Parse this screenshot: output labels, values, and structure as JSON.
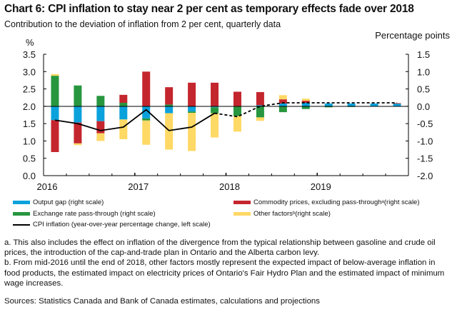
{
  "header": {
    "title": "Chart 6: CPI inflation to stay near 2 per cent as temporary effects fade over 2018",
    "subtitle": "Contribution to the deviation of inflation from 2 per cent, quarterly data"
  },
  "colors": {
    "output_gap": "#0BA2DC",
    "commodity": "#C4262E",
    "exchange_rate": "#27963F",
    "other": "#FFD965",
    "cpi": "#000000"
  },
  "chart_data": {
    "type": "bar",
    "stacked": true,
    "title": "Chart 6: CPI inflation to stay near 2 per cent as temporary effects fade over 2018",
    "subtitle": "Contribution to the deviation of inflation from 2 per cent, quarterly data",
    "left_axis": {
      "label": "%",
      "range": [
        0.0,
        3.5
      ],
      "ticks": [
        "3.5",
        "3.0",
        "2.5",
        "2.0",
        "1.5",
        "1.0",
        "0.5",
        "0.0"
      ]
    },
    "right_axis": {
      "label": "Percentage points",
      "range": [
        -2.0,
        1.5
      ],
      "ticks": [
        "1.5",
        "1.0",
        "0.5",
        "0.0",
        "-0.5",
        "-1.0",
        "-1.5",
        "-2.0"
      ]
    },
    "x_tick_labels": [
      "2016",
      "2017",
      "2018",
      "2019"
    ],
    "categories": [
      "2016Q1",
      "2016Q2",
      "2016Q3",
      "2016Q4",
      "2017Q1",
      "2017Q2",
      "2017Q3",
      "2017Q4",
      "2018Q1",
      "2018Q2",
      "2018Q3",
      "2018Q4",
      "2019Q1",
      "2019Q2",
      "2019Q3",
      "2019Q4"
    ],
    "series": [
      {
        "key": "output_gap",
        "name": "Output gap (right scale)",
        "axis": "right",
        "values": [
          -0.4,
          -0.47,
          -0.43,
          -0.38,
          -0.35,
          -0.2,
          -0.15,
          -0.03,
          0.0,
          0.03,
          0.08,
          0.1,
          0.08,
          0.08,
          0.08,
          0.08
        ]
      },
      {
        "key": "exchange_rate",
        "name": "Exchange rate pass-through (right scale)",
        "axis": "right",
        "values": [
          0.88,
          0.6,
          0.3,
          0.1,
          -0.06,
          0.05,
          -0.04,
          -0.17,
          -0.28,
          -0.32,
          -0.17,
          -0.08,
          -0.03,
          -0.02,
          0.0,
          0.0
        ]
      },
      {
        "key": "commodity",
        "name": "Commodity prices, excluding pass-through",
        "name_suffix": "a",
        "name_tail": " (right scale)",
        "axis": "right",
        "values": [
          -0.92,
          -0.6,
          -0.35,
          0.23,
          1.0,
          0.5,
          0.68,
          0.68,
          0.42,
          0.38,
          0.12,
          0.06,
          0.0,
          0.0,
          0.0,
          0.01
        ]
      },
      {
        "key": "other",
        "name": "Other factors",
        "name_suffix": "b",
        "name_tail": " (right scale)",
        "axis": "right",
        "values": [
          0.05,
          -0.05,
          -0.22,
          -0.57,
          -0.7,
          -1.05,
          -1.1,
          -0.7,
          -0.45,
          -0.1,
          0.12,
          0.06,
          0.0,
          0.0,
          0.0,
          0.0
        ]
      },
      {
        "key": "cpi",
        "name": "CPI inflation (year-over-year percentage change, left scale)",
        "axis": "left",
        "type": "line",
        "values": [
          1.6,
          1.5,
          1.3,
          1.4,
          1.9,
          1.3,
          1.4,
          1.8,
          1.7,
          2.0,
          2.1,
          2.1,
          2.1,
          2.1,
          2.1,
          2.1
        ],
        "projection_from_index": 7
      }
    ],
    "reference_line": {
      "left_value": 2.0,
      "right_value": 0.0
    }
  },
  "legend": {
    "output_gap": "Output gap (right scale)",
    "commodity_main": "Commodity prices, excluding pass-through",
    "commodity_sup": "a",
    "commodity_tail": " (right scale)",
    "exchange_rate": "Exchange rate pass-through (right scale)",
    "other_main": "Other factors",
    "other_sup": "b",
    "other_tail": " (right scale)",
    "cpi": "CPI inflation (year-over-year percentage change, left scale)"
  },
  "notes": {
    "a": "a. This also includes the effect on inflation of the divergence from the typical relationship between gasoline and crude oil prices, the introduction of the cap-and-trade plan in Ontario and the Alberta carbon levy.",
    "b": "b. From mid-2016 until the end of 2018, other factors mostly represent the expected impact of below-average inflation in food products, the estimated impact on electricity prices of Ontario's Fair Hydro Plan and the estimated impact of minimum wage increases.",
    "sources": "Sources: Statistics Canada and Bank of Canada estimates, calculations and projections"
  }
}
